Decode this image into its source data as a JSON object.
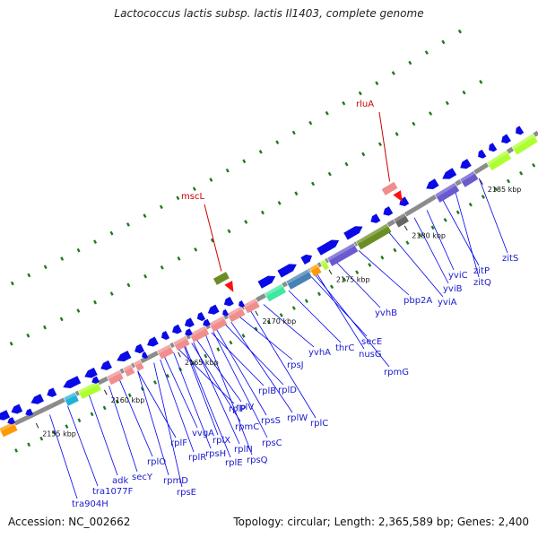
{
  "title": "Lactococcus lactis subsp. lactis Il1403, complete genome",
  "accession": "Accession: NC_002662",
  "summary": "Topology: circular; Length: 2,365,589 bp; Genes: 2,400",
  "colors": {
    "backbone": "#8c8c8c",
    "gene_arrow": "#0a0ae6",
    "label_text": "#1a1acc",
    "leader_line": "#0000ee",
    "highlight": "#cc0000",
    "dots": "#1e7a1e",
    "ribosomal": "#f08e8e",
    "cds_green": "#6b8e23",
    "cds_lime": "#adff2f",
    "cds_purple": "#6a5acd",
    "cds_cyan": "#20b2d8",
    "cds_orange": "#ff9900",
    "cds_teal": "#4682b4",
    "cds_spring": "#3ee8a0"
  },
  "kbp_ticks": [
    "2155 kbp",
    "2160 kbp",
    "2165 kbp",
    "2170 kbp",
    "2175 kbp",
    "2180 kbp",
    "2185 kbp"
  ],
  "highlighted_genes": [
    "mscL",
    "rluA"
  ],
  "gene_labels": [
    "tra904H",
    "tra1077F",
    "adk",
    "secY",
    "rplO",
    "rpmD",
    "rpsE",
    "rplF",
    "rplR",
    "rpsH",
    "rplE",
    "rplN",
    "rplX",
    "rpsQ",
    "rpmC",
    "rplP",
    "rpsC",
    "rplV",
    "rpsS",
    "rplB",
    "rplW",
    "rplD",
    "rplC",
    "rpsJ",
    "vvgA",
    "yvhA",
    "thrC",
    "secE",
    "nusG",
    "rpmG",
    "yvhB",
    "pbp2A",
    "yviA",
    "yviB",
    "yviC",
    "zitP",
    "zitQ",
    "zitS"
  ]
}
